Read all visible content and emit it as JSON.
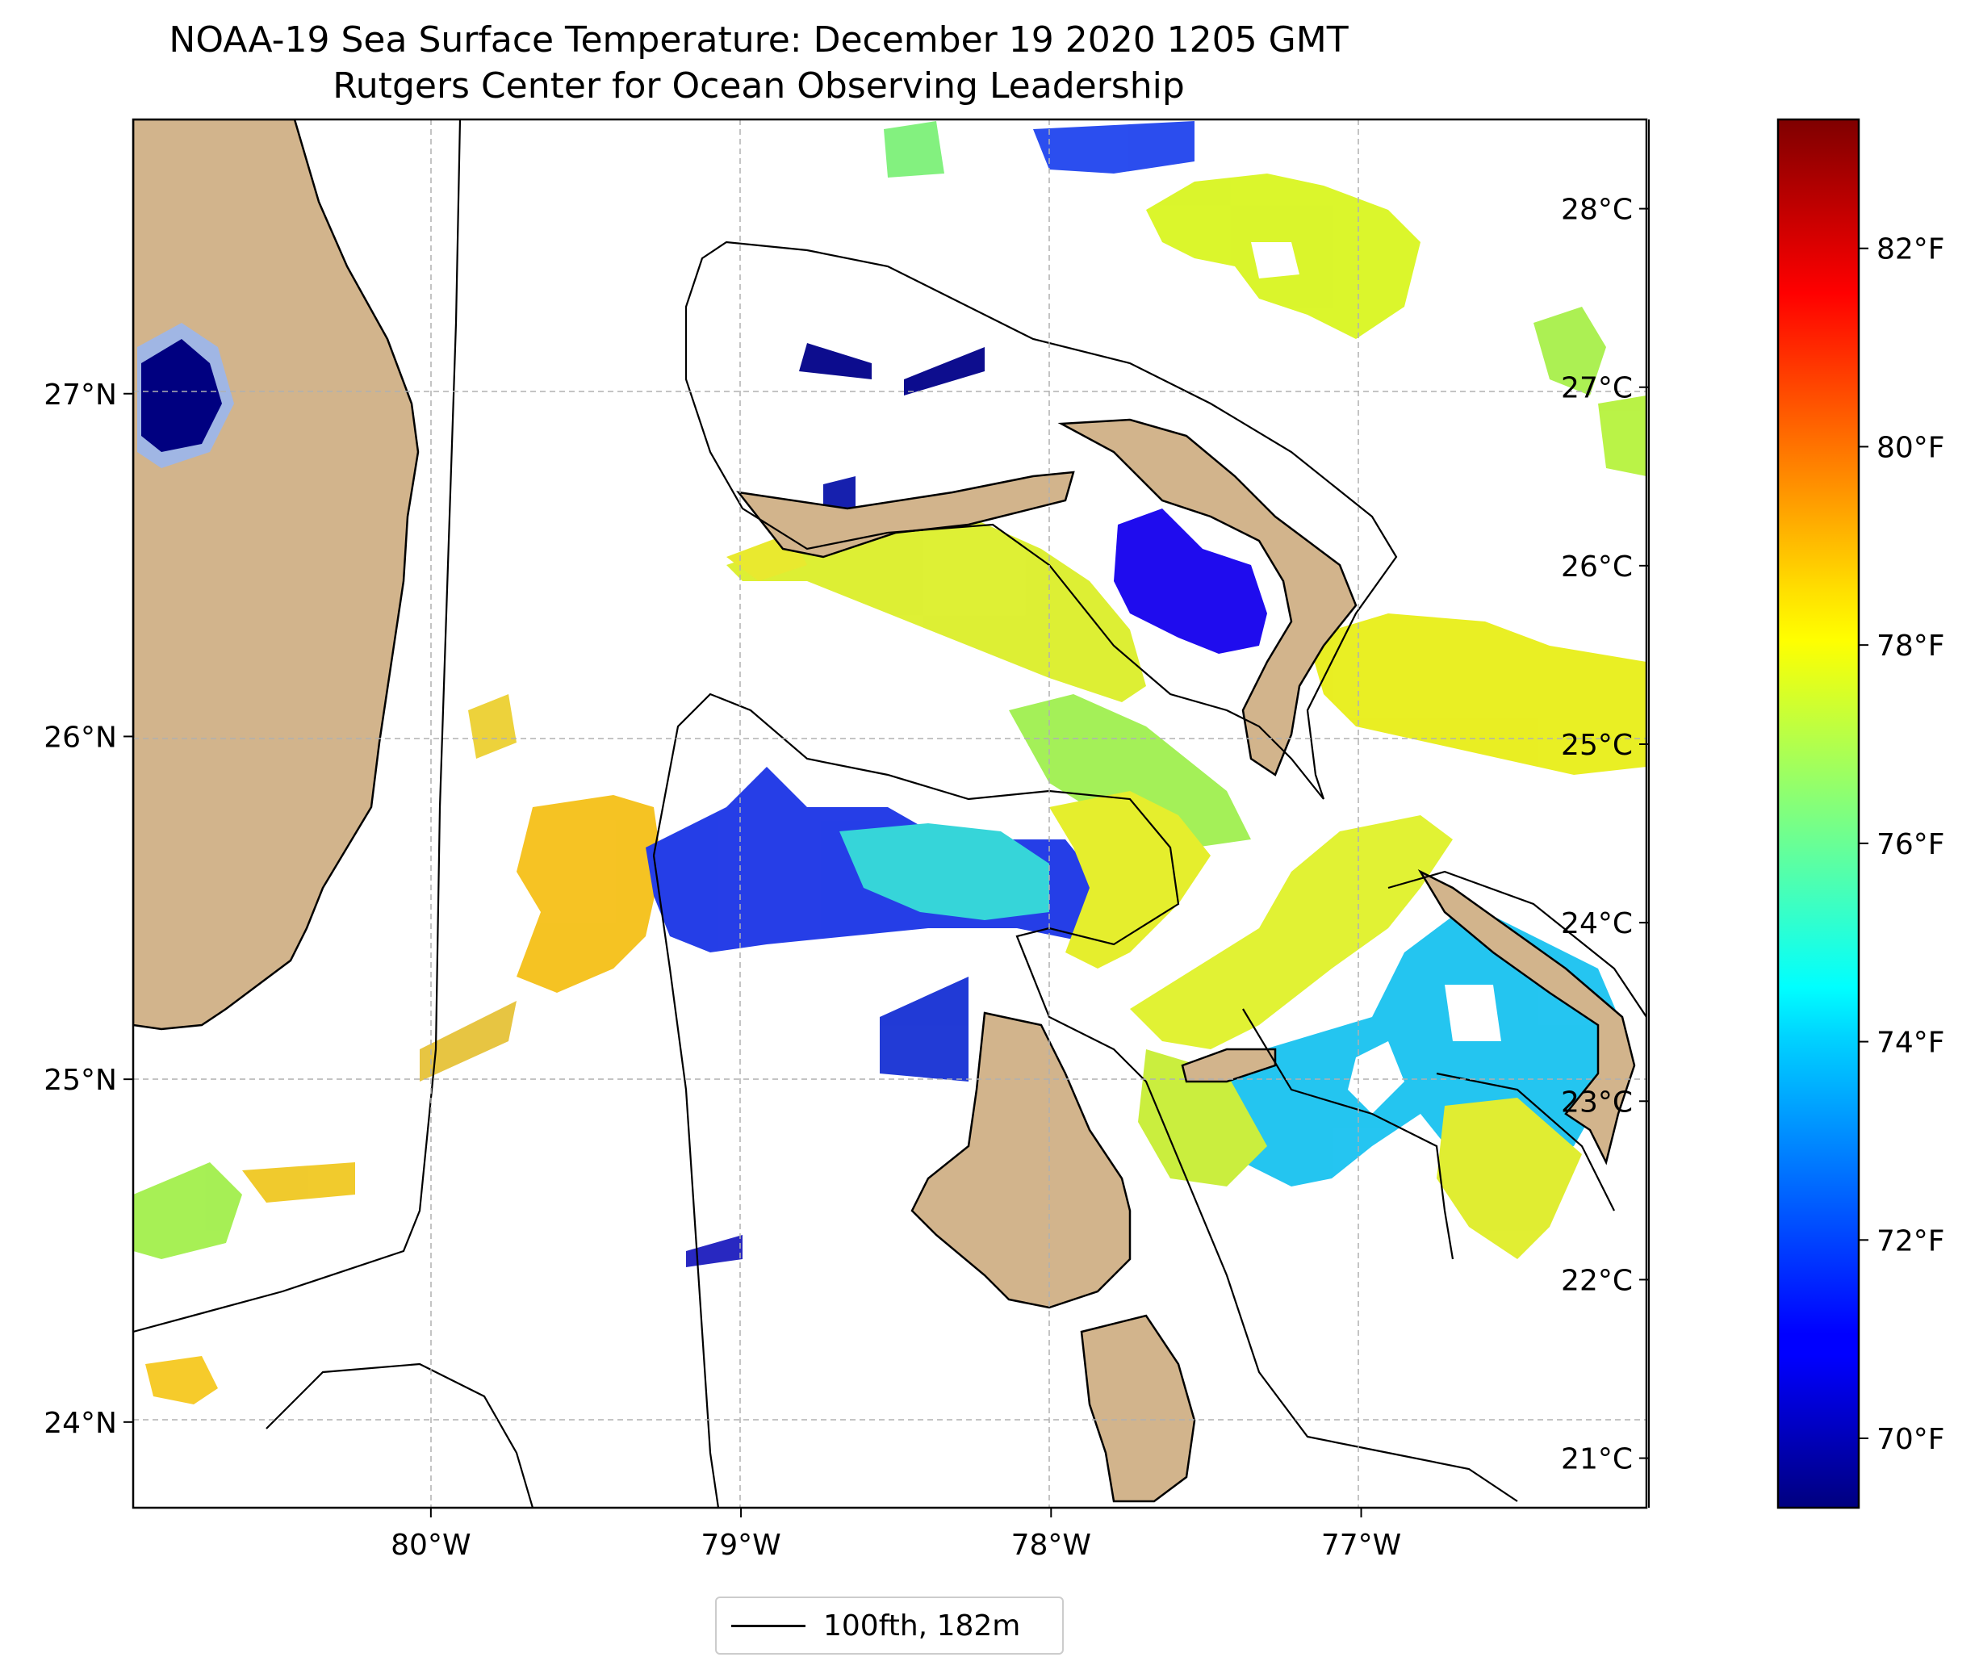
{
  "title": {
    "line1": "NOAA-19 Sea Surface Temperature: December 19 2020 1205 GMT",
    "line2": "Rutgers Center for Ocean Observing Leadership"
  },
  "map": {
    "lon_range": [
      -80.96,
      -76.08
    ],
    "lat_range": [
      23.75,
      27.8
    ],
    "lon_ticks": [
      {
        "value": -80,
        "label": "80°W"
      },
      {
        "value": -79,
        "label": "79°W"
      },
      {
        "value": -78,
        "label": "78°W"
      },
      {
        "value": -77,
        "label": "77°W"
      }
    ],
    "lat_ticks": [
      {
        "value": 24,
        "label": "24°N"
      },
      {
        "value": 25,
        "label": "25°N"
      },
      {
        "value": 26,
        "label": "26°N"
      },
      {
        "value": 27,
        "label": "27°N"
      }
    ],
    "grid": true,
    "colors": {
      "land": "#d2b48c",
      "isobath": "#000000",
      "grid": "#b0b0b0",
      "cloud_masked": "#ffffff"
    }
  },
  "colorbar": {
    "colormap": "jet",
    "range_f": [
      69.3,
      83.3
    ],
    "celsius_labels": [
      {
        "value": 28,
        "label": "28°C"
      },
      {
        "value": 27,
        "label": "27°C"
      },
      {
        "value": 26,
        "label": "26°C"
      },
      {
        "value": 25,
        "label": "25°C"
      },
      {
        "value": 24,
        "label": "24°C"
      },
      {
        "value": 23,
        "label": "23°C"
      },
      {
        "value": 22,
        "label": "22°C"
      },
      {
        "value": 21,
        "label": "21°C"
      }
    ],
    "fahrenheit_labels": [
      {
        "value": 82,
        "label": "82°F"
      },
      {
        "value": 80,
        "label": "80°F"
      },
      {
        "value": 78,
        "label": "78°F"
      },
      {
        "value": 76,
        "label": "76°F"
      },
      {
        "value": 74,
        "label": "74°F"
      },
      {
        "value": 72,
        "label": "72°F"
      },
      {
        "value": 70,
        "label": "70°F"
      }
    ]
  },
  "legend": {
    "label": "100fth, 182m",
    "line_color": "#000000"
  }
}
